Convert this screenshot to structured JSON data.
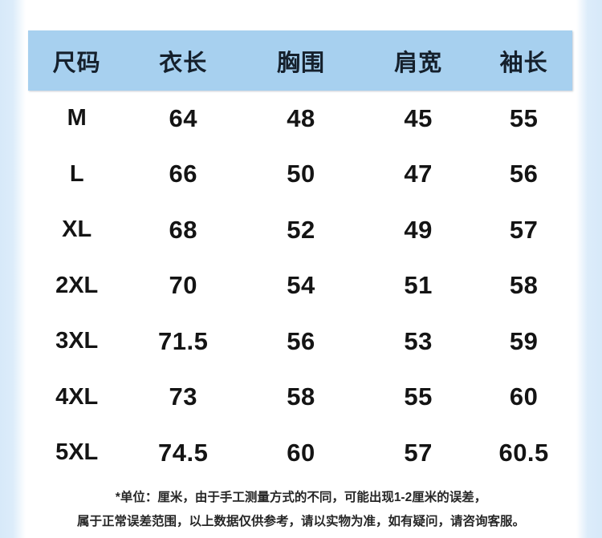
{
  "colors": {
    "header_bg": "#a7d0ef",
    "edge_strip": "#d7e9f9",
    "header_text": "#15202c",
    "cell_text": "#141414",
    "footnote_text": "#262626",
    "page_bg": "#ffffff"
  },
  "size_chart": {
    "columns": [
      "尺码",
      "衣长",
      "胸围",
      "肩宽",
      "袖长"
    ],
    "rows": [
      {
        "cells": [
          "M",
          "64",
          "48",
          "45",
          "55"
        ]
      },
      {
        "cells": [
          "L",
          "66",
          "50",
          "47",
          "56"
        ]
      },
      {
        "cells": [
          "XL",
          "68",
          "52",
          "49",
          "57"
        ]
      },
      {
        "cells": [
          "2XL",
          "70",
          "54",
          "51",
          "58"
        ]
      },
      {
        "cells": [
          "3XL",
          "71.5",
          "56",
          "53",
          "59"
        ]
      },
      {
        "cells": [
          "4XL",
          "73",
          "58",
          "55",
          "60"
        ]
      },
      {
        "cells": [
          "5XL",
          "74.5",
          "60",
          "57",
          "60.5"
        ]
      }
    ]
  },
  "footnote": {
    "line1": "*单位：厘米，由于手工测量方式的不同，可能出现1-2厘米的误差，",
    "line2": "属于正常误差范围，以上数据仅供参考，请以实物为准，如有疑问，请咨询客服。"
  }
}
